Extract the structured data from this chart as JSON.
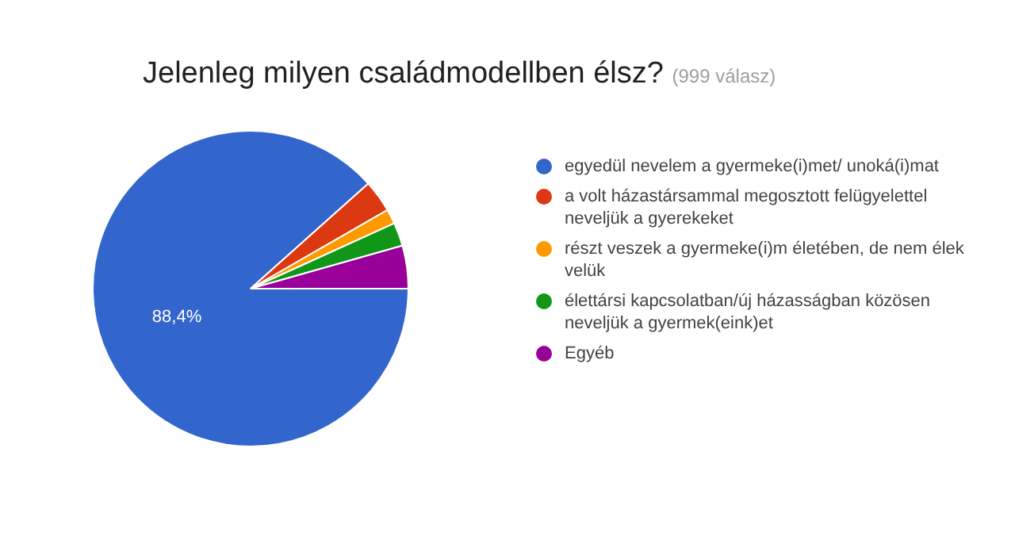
{
  "chart_data": {
    "type": "pie",
    "title": "Jelenleg milyen családmodellben élsz?",
    "subtitle": "(999 válasz)",
    "categories": [
      "egyedül nevelem a gyermeke(i)met/ unoká(i)mat",
      "a volt házastársammal megosztott felügyelettel neveljük a gyerekeket",
      "részt veszek a gyermeke(i)m életében, de nem élek velük",
      "élettársi kapcsolatban/új házasságban közösen neveljük a gyermek(eink)et",
      "Egyéb"
    ],
    "values": [
      88.4,
      3.3,
      1.5,
      2.4,
      4.4
    ],
    "colors": [
      "#3366cc",
      "#dc3912",
      "#ff9900",
      "#109618",
      "#990099"
    ],
    "value_labels": [
      "88,4%",
      null,
      null,
      null,
      null
    ],
    "legend": "right"
  }
}
